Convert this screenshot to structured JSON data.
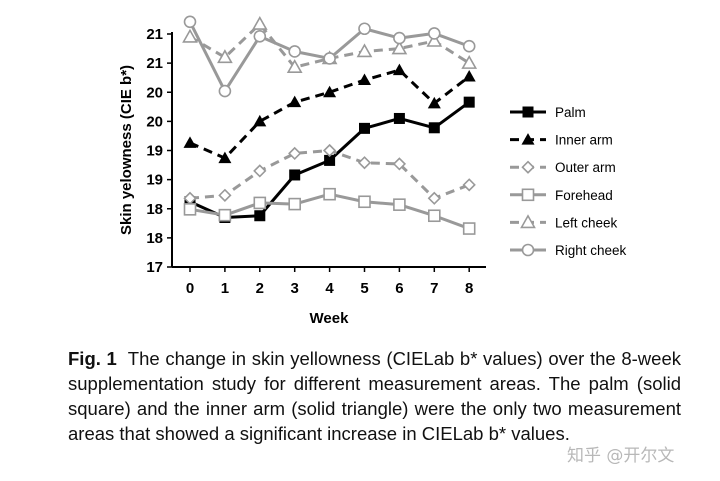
{
  "chart_data": {
    "type": "line",
    "xlabel": "Week",
    "ylabel": "Skin yelowness (CIE b*)",
    "x": [
      0,
      1,
      2,
      3,
      4,
      5,
      6,
      7,
      8
    ],
    "ylim": [
      17,
      21
    ],
    "ytick_labels": [
      "17",
      "18",
      "18",
      "19",
      "19",
      "20",
      "20",
      "21",
      "21"
    ],
    "grid": false,
    "legend_position": "right",
    "series": [
      {
        "name": "Palm",
        "style": "solid",
        "marker": "filled-square",
        "color": "#000000",
        "values": [
          18.12,
          17.85,
          17.88,
          18.58,
          18.83,
          19.38,
          19.55,
          19.39,
          19.83
        ]
      },
      {
        "name": "Inner arm",
        "style": "dashed",
        "marker": "filled-triangle",
        "color": "#000000",
        "values": [
          19.13,
          18.87,
          19.5,
          19.83,
          20.0,
          20.21,
          20.38,
          19.81,
          20.27
        ]
      },
      {
        "name": "Outer arm",
        "style": "dashed",
        "marker": "open-diamond",
        "color": "#999999",
        "values": [
          18.18,
          18.23,
          18.65,
          18.95,
          19.0,
          18.79,
          18.77,
          18.18,
          18.41
        ]
      },
      {
        "name": "Forehead",
        "style": "solid",
        "marker": "open-square",
        "color": "#999999",
        "values": [
          17.99,
          17.89,
          18.1,
          18.08,
          18.25,
          18.12,
          18.07,
          17.88,
          17.66
        ]
      },
      {
        "name": "Left cheek",
        "style": "dashed",
        "marker": "open-triangle",
        "color": "#999999",
        "values": [
          20.95,
          20.6,
          21.17,
          20.43,
          20.58,
          20.7,
          20.75,
          20.88,
          20.5
        ]
      },
      {
        "name": "Right cheek",
        "style": "solid",
        "marker": "open-circle",
        "color": "#999999",
        "values": [
          21.21,
          20.02,
          20.96,
          20.7,
          20.58,
          21.09,
          20.93,
          21.01,
          20.79
        ]
      }
    ]
  },
  "caption": {
    "label": "Fig. 1",
    "text": "The change in skin yellowness (CIELab b* values) over the 8-week supplementation study for different measurement areas. The palm (solid square) and the inner arm (solid triangle) were the only two measurement areas that showed a significant increase in CIELab b* values."
  },
  "watermark": "知乎 @开尔文"
}
